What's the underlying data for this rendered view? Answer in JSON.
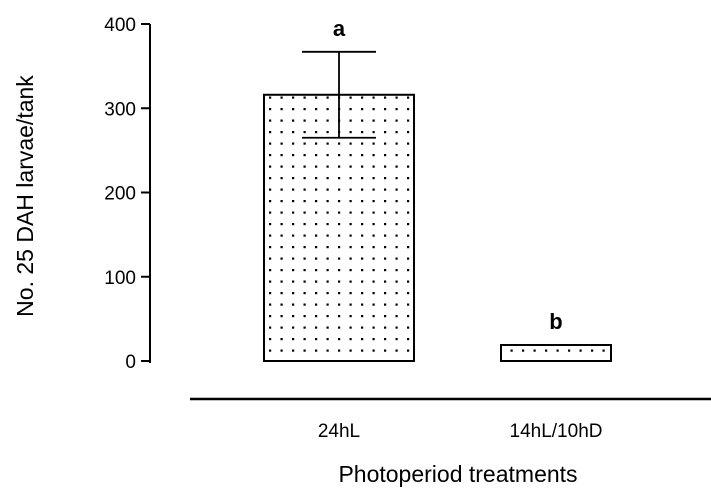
{
  "chart_data": {
    "type": "bar",
    "title": "",
    "xlabel": "Photoperiod treatments",
    "ylabel": "No. 25 DAH larvae/tank",
    "ylim": [
      0,
      400
    ],
    "yticks": [
      "0",
      "100",
      "200",
      "300",
      "400"
    ],
    "categories": [
      "24hL",
      "14hL/10hD"
    ],
    "values": [
      316,
      19
    ],
    "error": [
      51,
      0
    ],
    "significance": [
      "a",
      "b"
    ],
    "bar_fill": "dotted pattern",
    "grid": false,
    "legend": "none"
  }
}
